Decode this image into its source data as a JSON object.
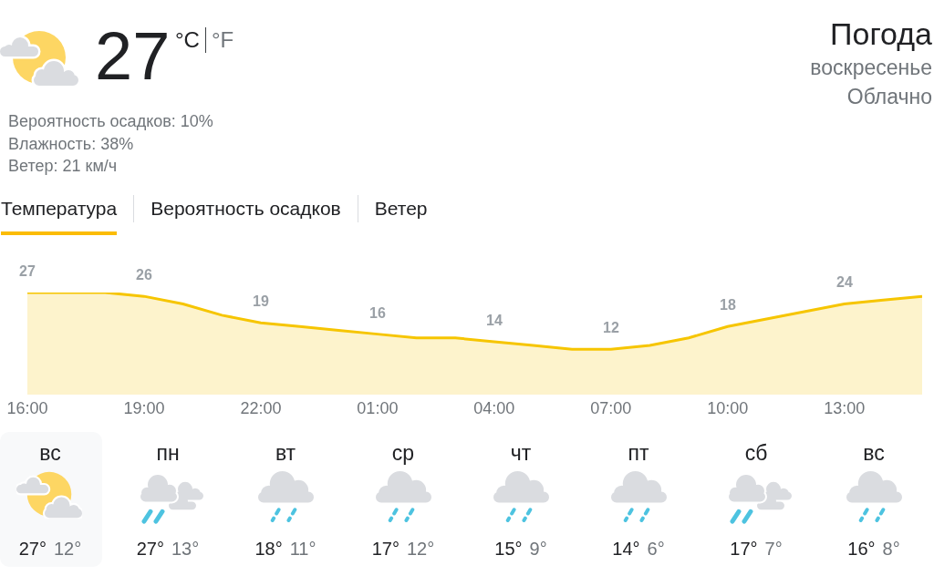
{
  "chart_data": [
    {
      "type": "other",
      "title": "Погода",
      "subtitle": "воскресенье",
      "annotations": [
        "27",
        "°C",
        "°F",
        "Вероятность осадков: 10%",
        "Влажность: 38%",
        "Ветер: 21 км/ч",
        "Облачно",
        "Температура",
        "Вероятность осадков",
        "Ветер"
      ]
    },
    {
      "type": "area",
      "categories": [
        "16:00",
        null,
        null,
        "19:00",
        null,
        null,
        "22:00",
        null,
        null,
        "01:00",
        null,
        null,
        "04:00",
        null,
        null,
        "07:00",
        null,
        null,
        "10:00",
        null,
        null,
        "13:00",
        null,
        null
      ],
      "values": [
        27,
        27,
        27,
        26,
        24,
        21,
        19,
        18,
        17,
        16,
        15,
        15,
        14,
        13,
        12,
        12,
        13,
        15,
        18,
        20,
        22,
        24,
        25,
        26
      ],
      "value_labels": [
        "27",
        null,
        null,
        "26",
        null,
        null,
        "19",
        null,
        null,
        "16",
        null,
        null,
        "14",
        null,
        null,
        "12",
        null,
        null,
        "18",
        null,
        null,
        "24",
        null,
        null
      ],
      "color": "#f6c500",
      "tick_labels": "x"
    },
    {
      "type": "other",
      "annotations": [
        "вс",
        "27°",
        "12°",
        "пн",
        "27°",
        "13°",
        "вт",
        "18°",
        "11°",
        "ср",
        "17°",
        "12°",
        "чт",
        "15°",
        "9°",
        "пт",
        "14°",
        "6°",
        "сб",
        "17°",
        "7°",
        "вс",
        "16°",
        "8°"
      ]
    }
  ]
}
